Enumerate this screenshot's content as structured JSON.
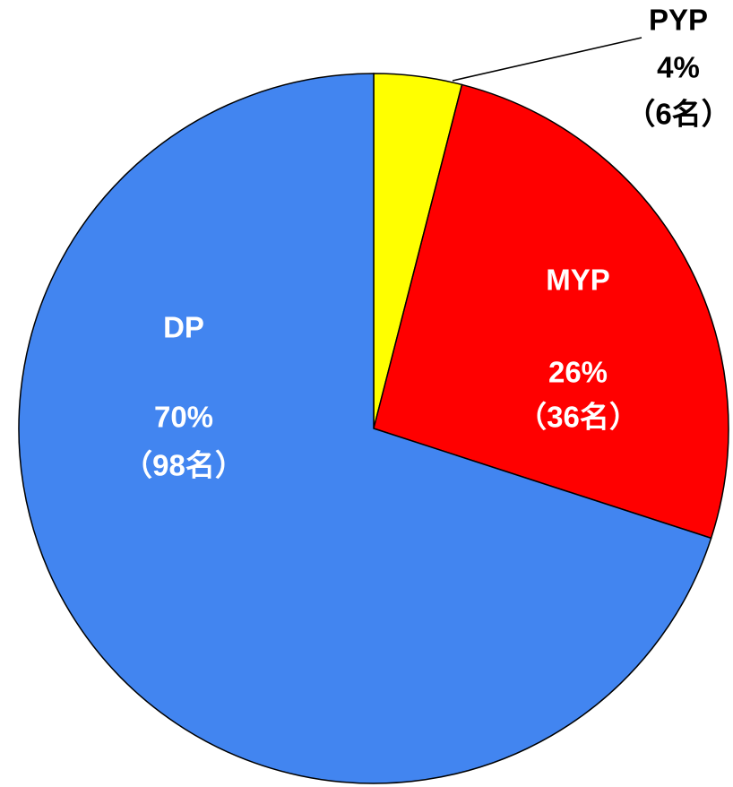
{
  "chart_data": {
    "type": "pie",
    "categories": [
      "PYP",
      "MYP",
      "DP"
    ],
    "values": [
      4,
      26,
      70
    ],
    "value_labels": [
      "4%",
      "26%",
      "70%"
    ],
    "count_labels": [
      "（6名）",
      "（36名）",
      "（98名）"
    ],
    "colors": [
      "#ffff00",
      "#ff0000",
      "#4285f0"
    ]
  }
}
